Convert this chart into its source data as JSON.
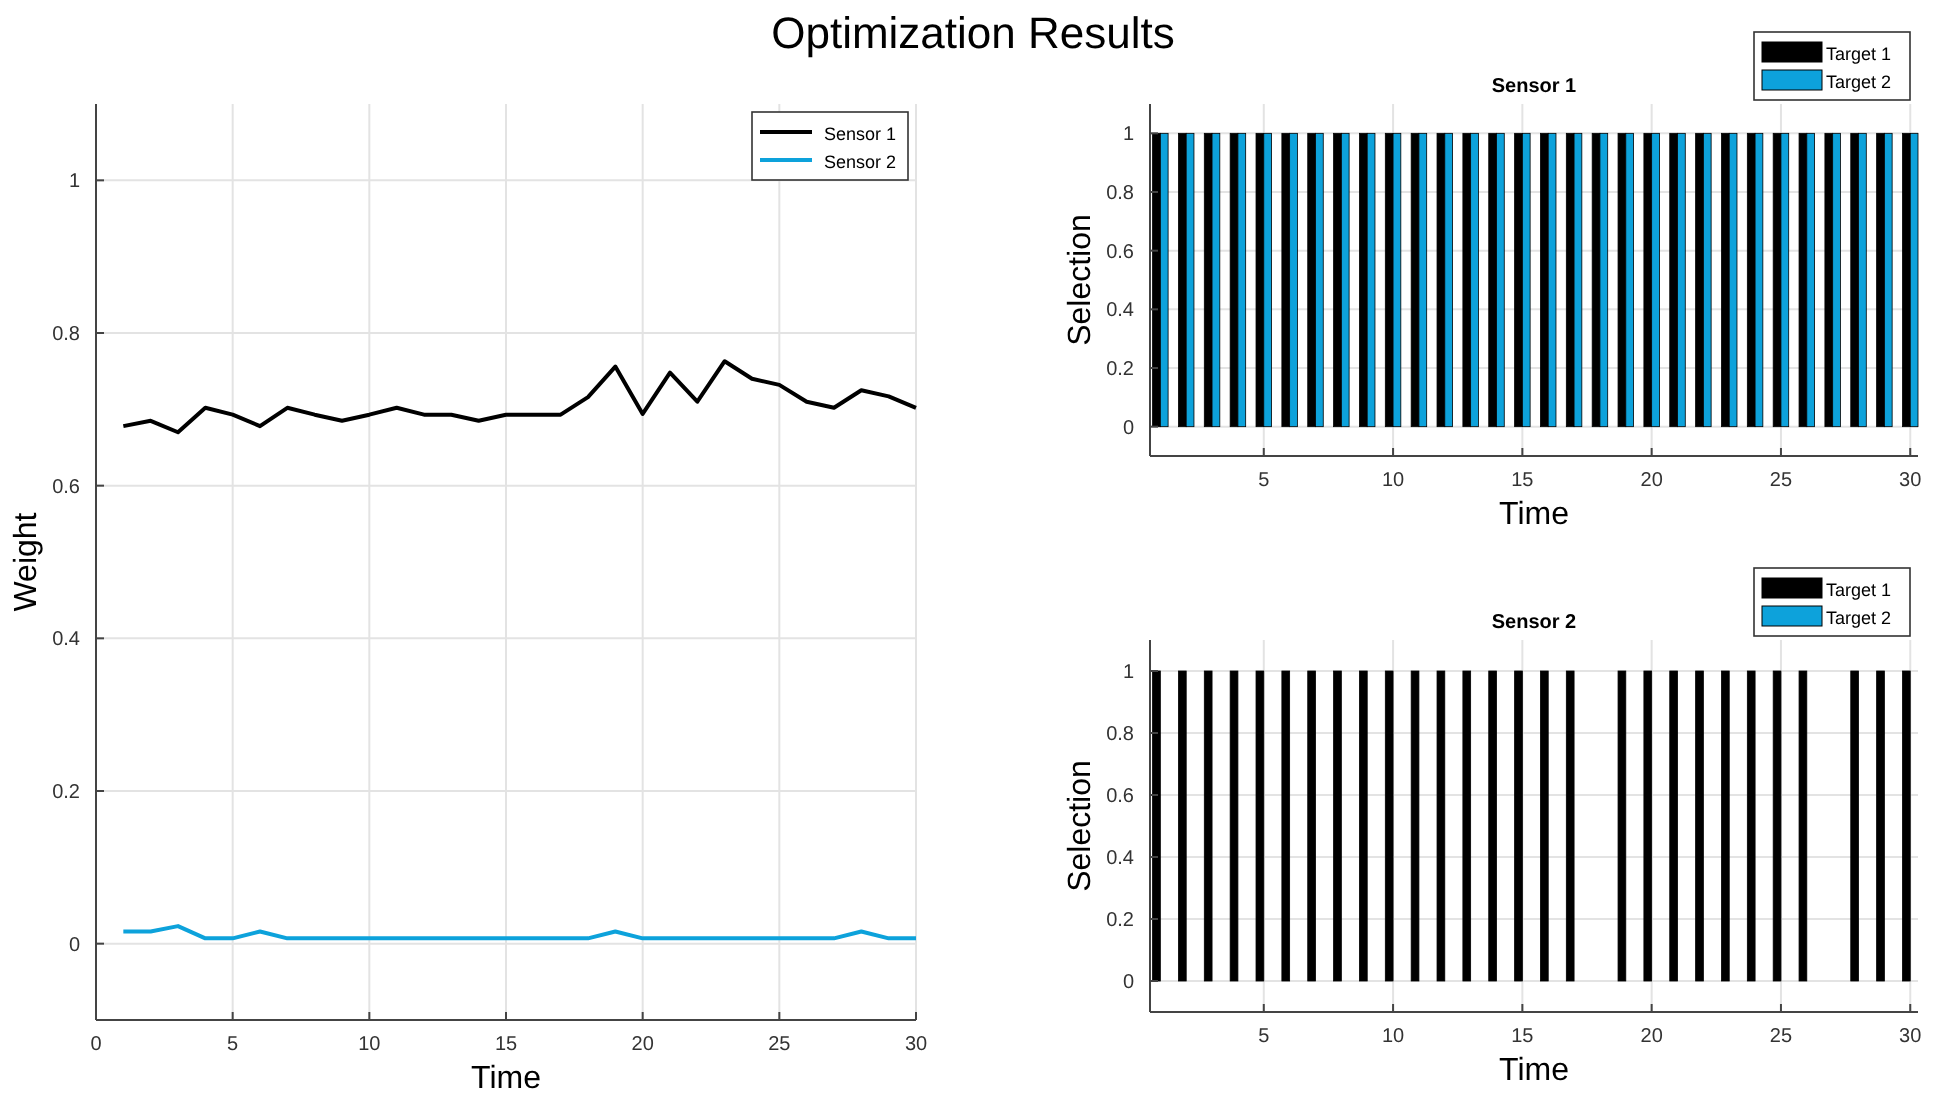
{
  "chart_data": [
    {
      "type": "line",
      "title": "Optimization Results",
      "xlabel": "Time",
      "ylabel": "Weight",
      "x": [
        1,
        2,
        3,
        4,
        5,
        6,
        7,
        8,
        9,
        10,
        11,
        12,
        13,
        14,
        15,
        16,
        17,
        18,
        19,
        20,
        21,
        22,
        23,
        24,
        25,
        26,
        27,
        28,
        29,
        30
      ],
      "xlim": [
        0,
        30
      ],
      "ylim": [
        -0.1,
        1.1
      ],
      "xticks": [
        0,
        5,
        10,
        15,
        20,
        25,
        30
      ],
      "yticks": [
        0,
        0.2,
        0.4,
        0.6,
        0.8,
        1
      ],
      "grid": true,
      "legend": "top right",
      "series": [
        {
          "name": "Sensor 1",
          "color": "#000000",
          "values": [
            0.678,
            0.685,
            0.67,
            0.702,
            0.693,
            0.678,
            0.702,
            0.693,
            0.685,
            0.693,
            0.702,
            0.693,
            0.693,
            0.685,
            0.693,
            0.693,
            0.693,
            0.716,
            0.756,
            0.694,
            0.748,
            0.71,
            0.763,
            0.74,
            0.732,
            0.71,
            0.702,
            0.725,
            0.717,
            0.702
          ]
        },
        {
          "name": "Sensor 2",
          "color": "#0da2db",
          "values": [
            0.016,
            0.016,
            0.023,
            0.007,
            0.007,
            0.016,
            0.007,
            0.007,
            0.007,
            0.007,
            0.007,
            0.007,
            0.007,
            0.007,
            0.007,
            0.007,
            0.007,
            0.007,
            0.016,
            0.007,
            0.007,
            0.007,
            0.007,
            0.007,
            0.007,
            0.007,
            0.007,
            0.016,
            0.007,
            0.007
          ]
        }
      ]
    },
    {
      "type": "bar",
      "title": "Sensor 1",
      "xlabel": "Time",
      "ylabel": "Selection",
      "x": [
        1,
        2,
        3,
        4,
        5,
        6,
        7,
        8,
        9,
        10,
        11,
        12,
        13,
        14,
        15,
        16,
        17,
        18,
        19,
        20,
        21,
        22,
        23,
        24,
        25,
        26,
        27,
        28,
        29,
        30
      ],
      "xlim": [
        0.6,
        30.3
      ],
      "ylim": [
        -0.1,
        1.1
      ],
      "xticks": [
        5,
        10,
        15,
        20,
        25,
        30
      ],
      "yticks": [
        0,
        0.2,
        0.4,
        0.6,
        0.8,
        1
      ],
      "grid": true,
      "legend": "top right",
      "series": [
        {
          "name": "Target 1",
          "color": "#000000",
          "values": [
            1,
            1,
            1,
            1,
            1,
            1,
            1,
            1,
            1,
            1,
            1,
            1,
            1,
            1,
            1,
            1,
            1,
            1,
            1,
            1,
            1,
            1,
            1,
            1,
            1,
            1,
            1,
            1,
            1,
            1
          ]
        },
        {
          "name": "Target 2",
          "color": "#0da2db",
          "values": [
            1,
            1,
            1,
            1,
            1,
            1,
            1,
            1,
            1,
            1,
            1,
            1,
            1,
            1,
            1,
            1,
            1,
            1,
            1,
            1,
            1,
            1,
            1,
            1,
            1,
            1,
            1,
            1,
            1,
            1
          ]
        }
      ]
    },
    {
      "type": "bar",
      "title": "Sensor 2",
      "xlabel": "Time",
      "ylabel": "Selection",
      "x": [
        1,
        2,
        3,
        4,
        5,
        6,
        7,
        8,
        9,
        10,
        11,
        12,
        13,
        14,
        15,
        16,
        17,
        18,
        19,
        20,
        21,
        22,
        23,
        24,
        25,
        26,
        27,
        28,
        29,
        30
      ],
      "xlim": [
        0.6,
        30.3
      ],
      "ylim": [
        -0.1,
        1.1
      ],
      "xticks": [
        5,
        10,
        15,
        20,
        25,
        30
      ],
      "yticks": [
        0,
        0.2,
        0.4,
        0.6,
        0.8,
        1
      ],
      "grid": true,
      "legend": "top right",
      "series": [
        {
          "name": "Target 1",
          "color": "#000000",
          "values": [
            1,
            1,
            1,
            1,
            1,
            1,
            1,
            1,
            1,
            1,
            1,
            1,
            1,
            1,
            1,
            1,
            1,
            0,
            1,
            1,
            1,
            1,
            1,
            1,
            1,
            1,
            0,
            1,
            1,
            1
          ]
        },
        {
          "name": "Target 2",
          "color": "#0da2db",
          "values": [
            0,
            0,
            0,
            0,
            0,
            0,
            0,
            0,
            0,
            0,
            0,
            0,
            0,
            0,
            0,
            0,
            0,
            0,
            0,
            0,
            0,
            0,
            0,
            0,
            0,
            0,
            0,
            0,
            0,
            0
          ]
        }
      ]
    }
  ]
}
